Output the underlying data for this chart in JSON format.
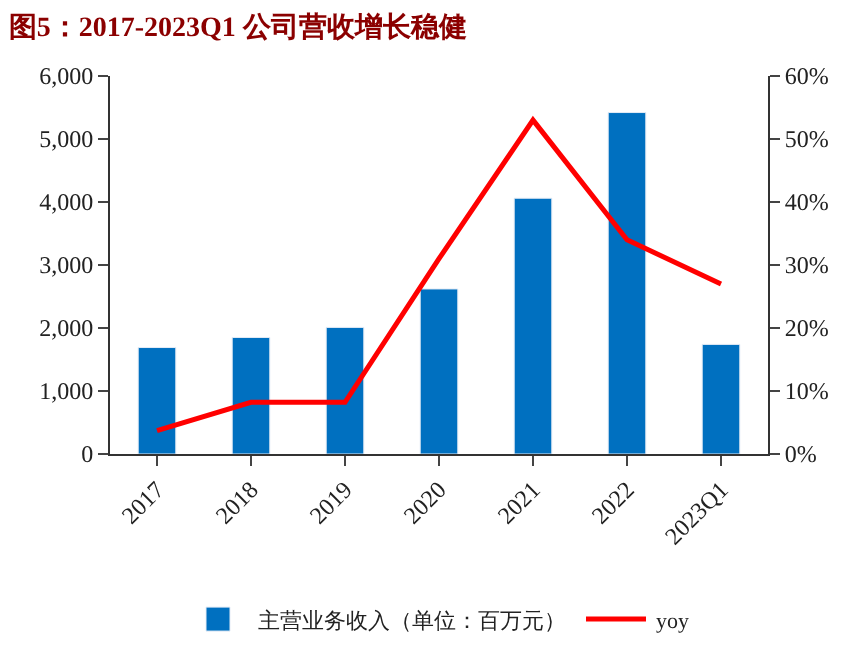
{
  "chart_data": {
    "type": "bar",
    "title": "图5：2017-2023Q1 公司营收增长稳健",
    "categories": [
      "2017",
      "2018",
      "2019",
      "2020",
      "2021",
      "2022",
      "2023Q1"
    ],
    "series": [
      {
        "name": "主营业务收入（单位：百万元）",
        "color": "#0070c0",
        "values": [
          1690,
          1850,
          2010,
          2620,
          4060,
          5420,
          1740
        ]
      },
      {
        "name": "yoy",
        "type": "line",
        "axis": "y2",
        "color": "#ff0000",
        "values": [
          3.7,
          8.2,
          8.2,
          31,
          53,
          34,
          27
        ]
      }
    ],
    "ylim": [
      0,
      6000
    ],
    "yticks": [
      {
        "value": 0,
        "label": "0"
      },
      {
        "value": 1000,
        "label": "1,000"
      },
      {
        "value": 2000,
        "label": "2,000"
      },
      {
        "value": 3000,
        "label": "3,000"
      },
      {
        "value": 4000,
        "label": "4,000"
      },
      {
        "value": 5000,
        "label": "5,000"
      },
      {
        "value": 6000,
        "label": "6,000"
      }
    ],
    "y2lim": [
      0,
      60
    ],
    "y2ticks": [
      {
        "value": 0,
        "label": "0%"
      },
      {
        "value": 10,
        "label": "10%"
      },
      {
        "value": 20,
        "label": "20%"
      },
      {
        "value": 30,
        "label": "30%"
      },
      {
        "value": 40,
        "label": "40%"
      },
      {
        "value": 50,
        "label": "50%"
      },
      {
        "value": 60,
        "label": "60%"
      }
    ],
    "legend": "bottom",
    "marker": "none",
    "line_style": "solid"
  }
}
